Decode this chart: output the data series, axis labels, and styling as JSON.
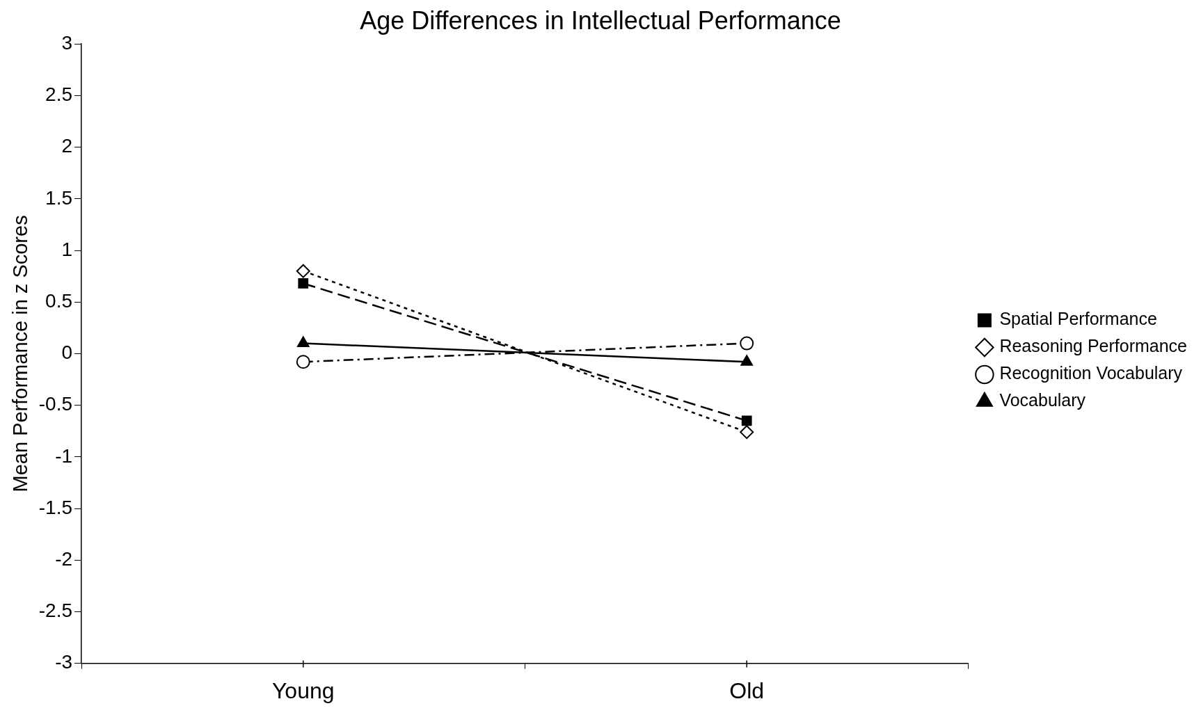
{
  "chart_data": {
    "type": "line",
    "title": "Age Differences in Intellectual Performance",
    "ylabel": "Mean Performance in z Scores",
    "categories": [
      "Young",
      "Old"
    ],
    "series": [
      {
        "name": "Spatial Performance",
        "color": "#000000",
        "values": [
          0.68,
          -0.65
        ],
        "marker": "square",
        "line_style": "dashed"
      },
      {
        "name": "Reasoning Performance",
        "color": "#000000",
        "values": [
          0.8,
          -0.76
        ],
        "marker": "diamond",
        "line_style": "dotted"
      },
      {
        "name": "Recognition Vocabulary",
        "color": "#000000",
        "values": [
          -0.08,
          0.1
        ],
        "marker": "circle",
        "line_style": "dashdot"
      },
      {
        "name": "Vocabulary",
        "color": "#000000",
        "values": [
          0.1,
          -0.08
        ],
        "marker": "triangle",
        "line_style": "solid"
      }
    ],
    "ylim": [
      -3,
      3
    ],
    "yticks": [
      -3,
      -2.5,
      -2,
      -1.5,
      -1,
      -0.5,
      0,
      0.5,
      1,
      1.5,
      2,
      2.5,
      3
    ],
    "grid": false,
    "legend": "right"
  }
}
